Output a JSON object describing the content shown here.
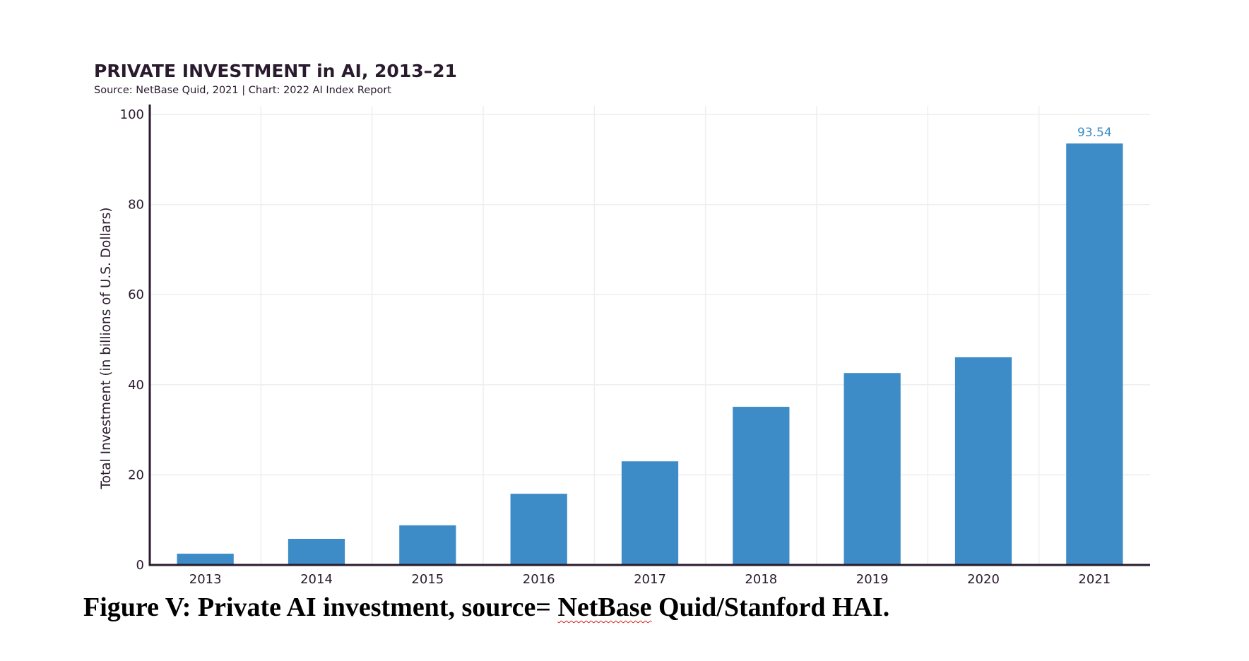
{
  "colors": {
    "bar": "#3d8cc7",
    "axis": "#2a1a2e",
    "grid": "#eeeeee",
    "text": "#2a1a2e",
    "data_label": "#3d8cc7"
  },
  "caption": {
    "prefix": "Figure V: Private AI investment, source= ",
    "source_name": "NetBase",
    "suffix": " Quid/Stanford HAI."
  },
  "chart_data": {
    "type": "bar",
    "title": "PRIVATE INVESTMENT in AI, 2013–21",
    "subtitle": "Source: NetBase Quid, 2021 | Chart: 2022 AI Index Report",
    "xlabel": "",
    "ylabel": "Total Investment (in billions of U.S. Dollars)",
    "categories": [
      "2013",
      "2014",
      "2015",
      "2016",
      "2017",
      "2018",
      "2019",
      "2020",
      "2021"
    ],
    "values": [
      2.5,
      5.8,
      8.8,
      15.8,
      23.0,
      35.1,
      42.6,
      46.1,
      93.54
    ],
    "data_labels": [
      "",
      "",
      "",
      "",
      "",
      "",
      "",
      "",
      "93.54"
    ],
    "ylim": [
      0,
      100
    ],
    "yticks": [
      0,
      20,
      40,
      60,
      80,
      100
    ],
    "grid": true,
    "legend": "none"
  }
}
